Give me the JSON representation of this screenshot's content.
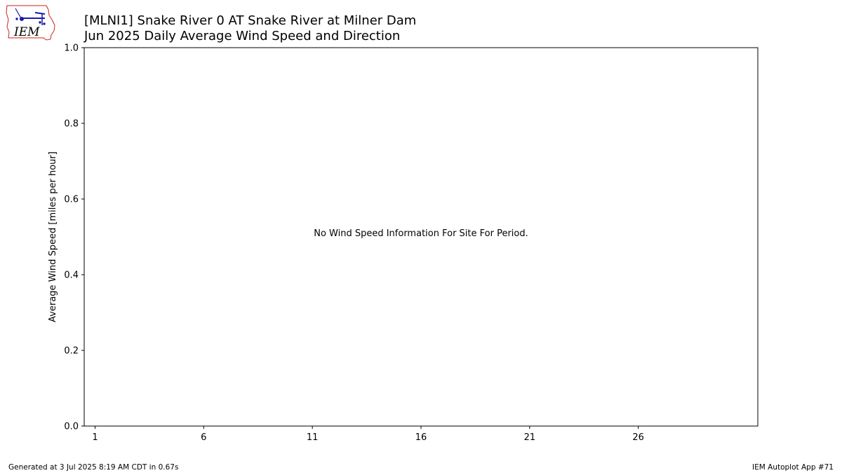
{
  "chart_data": {
    "type": "bar",
    "title": "[MLNI1] Snake River 0 AT Snake River at Milner Dam",
    "subtitle": "Jun 2025 Daily Average Wind Speed and Direction",
    "xlabel": "",
    "ylabel": "Average Wind Speed [miles per hour]",
    "x_ticks": [
      "1",
      "6",
      "11",
      "16",
      "21",
      "26"
    ],
    "x_tick_values": [
      1,
      6,
      11,
      16,
      21,
      26
    ],
    "xlim": [
      0.5,
      31.5
    ],
    "y_ticks": [
      "0.0",
      "0.2",
      "0.4",
      "0.6",
      "0.8",
      "1.0"
    ],
    "y_tick_values": [
      0.0,
      0.2,
      0.4,
      0.6,
      0.8,
      1.0
    ],
    "ylim": [
      0,
      1
    ],
    "grid": false,
    "series": [],
    "message": "No Wind Speed Information For Site For Period."
  },
  "logo": {
    "text": "IEM",
    "brand_color": "#cc2222",
    "icon_color": "#1a1aaa"
  },
  "footer": {
    "generated": "Generated at 3 Jul 2025 8:19 AM CDT in 0.67s",
    "app": "IEM Autoplot App #71"
  }
}
